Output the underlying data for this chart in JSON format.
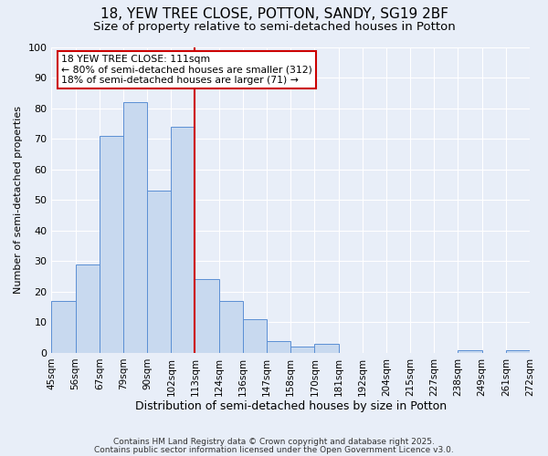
{
  "title1": "18, YEW TREE CLOSE, POTTON, SANDY, SG19 2BF",
  "title2": "Size of property relative to semi-detached houses in Potton",
  "xlabel": "Distribution of semi-detached houses by size in Potton",
  "ylabel": "Number of semi-detached properties",
  "bin_labels": [
    "45sqm",
    "56sqm",
    "67sqm",
    "79sqm",
    "90sqm",
    "102sqm",
    "113sqm",
    "124sqm",
    "136sqm",
    "147sqm",
    "158sqm",
    "170sqm",
    "181sqm",
    "192sqm",
    "204sqm",
    "215sqm",
    "227sqm",
    "238sqm",
    "249sqm",
    "261sqm",
    "272sqm"
  ],
  "bar_heights": [
    17,
    29,
    71,
    82,
    53,
    74,
    24,
    17,
    11,
    4,
    2,
    3,
    0,
    0,
    0,
    0,
    0,
    1,
    0,
    1
  ],
  "bar_color": "#c8d9ef",
  "bar_edge_color": "#5b8fd4",
  "property_line_x": 6,
  "property_line_color": "#cc0000",
  "annotation_line1": "18 YEW TREE CLOSE: 111sqm",
  "annotation_line2": "← 80% of semi-detached houses are smaller (312)",
  "annotation_line3": "18% of semi-detached houses are larger (71) →",
  "annotation_box_color": "#ffffff",
  "annotation_box_edge_color": "#cc0000",
  "ylim": [
    0,
    100
  ],
  "yticks": [
    0,
    10,
    20,
    30,
    40,
    50,
    60,
    70,
    80,
    90,
    100
  ],
  "footer1": "Contains HM Land Registry data © Crown copyright and database right 2025.",
  "footer2": "Contains public sector information licensed under the Open Government Licence v3.0.",
  "background_color": "#e8eef8",
  "plot_background_color": "#e8eef8",
  "grid_color": "#ffffff",
  "title1_fontsize": 11,
  "title2_fontsize": 9.5,
  "ylabel_fontsize": 8,
  "xlabel_fontsize": 9
}
